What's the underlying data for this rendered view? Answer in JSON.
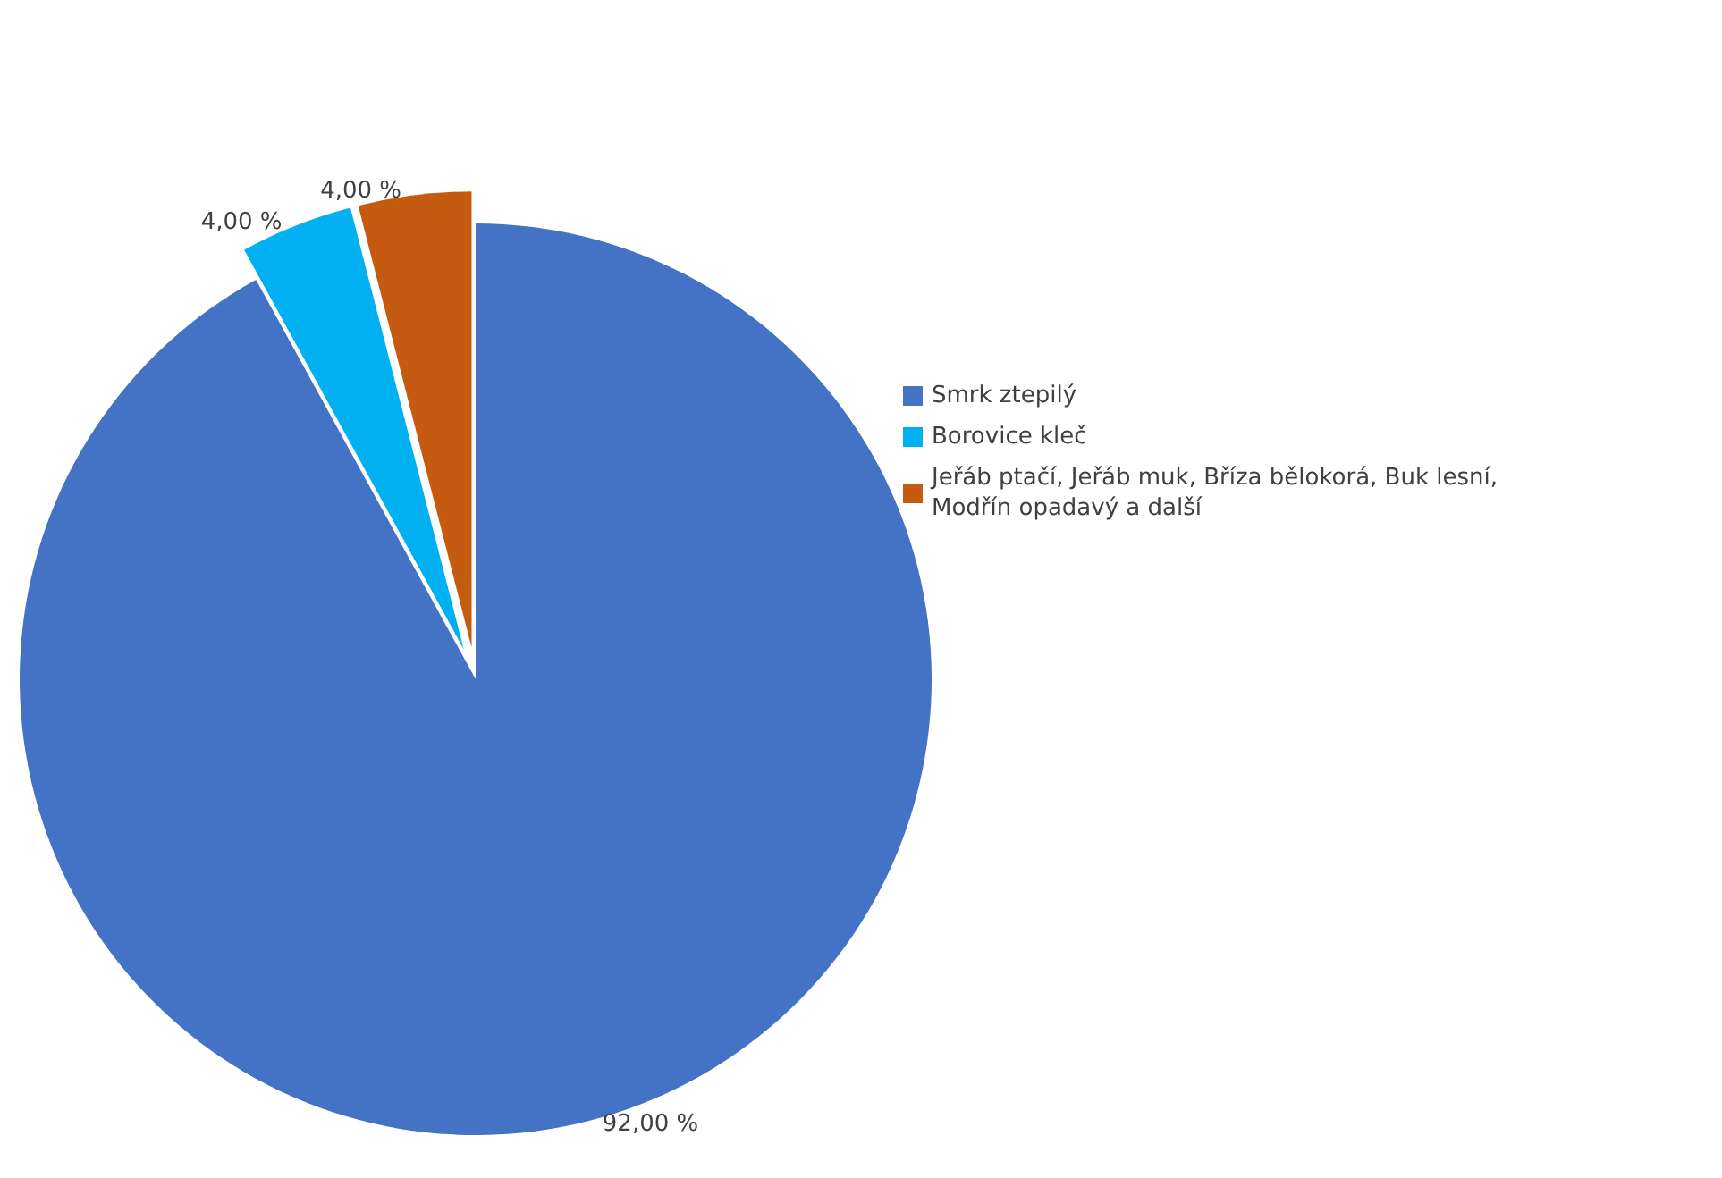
{
  "chart_data": {
    "type": "pie",
    "categories": [
      "Smrk ztepilý",
      "Borovice kleč",
      "Jeřáb ptačí, Jeřáb muk, Bříza bělokorá, Buk lesní, Modřín opadavý a další"
    ],
    "values": [
      92,
      4,
      4
    ],
    "colors": [
      "#4472c4",
      "#00b0f0",
      "#c55a11"
    ],
    "value_labels": [
      "92,00 %",
      "4,00 %",
      "4,00 %"
    ],
    "legend": "right"
  }
}
